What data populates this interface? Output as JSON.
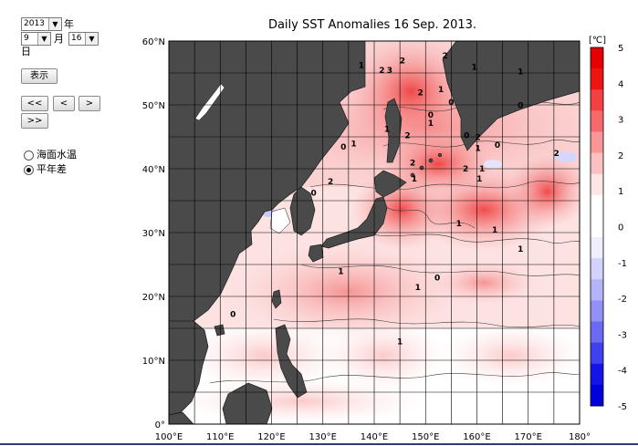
{
  "controls": {
    "year": {
      "value": "2013",
      "unit": "年"
    },
    "month": {
      "value": "9",
      "unit": "月"
    },
    "day": {
      "value": "16",
      "unit": "日"
    },
    "show_button": "表示",
    "nav_buttons": [
      "<<",
      "<",
      ">",
      ">>"
    ],
    "display_mode": {
      "options": [
        "海面水温",
        "平年差"
      ],
      "selected": "平年差"
    }
  },
  "map": {
    "title": "Daily SST Anomalies 16 Sep. 2013.",
    "lat_labels": [
      "60°N",
      "50°N",
      "40°N",
      "30°N",
      "20°N",
      "10°N",
      "0°"
    ],
    "lon_labels": [
      "100°E",
      "110°E",
      "120°E",
      "130°E",
      "140°E",
      "150°E",
      "160°E",
      "170°E",
      "180°"
    ],
    "lat_range": [
      0,
      60
    ],
    "lon_range": [
      100,
      180
    ],
    "grid": true,
    "land_color": "#4a4a4a",
    "contour_labels": [
      {
        "text": "2",
        "lon": 145.5,
        "lat": 56.5
      },
      {
        "text": "1",
        "lon": 137.5,
        "lat": 55.8
      },
      {
        "text": "2",
        "lon": 141.5,
        "lat": 55.0
      },
      {
        "text": "3",
        "lon": 143.0,
        "lat": 55.0
      },
      {
        "text": "2",
        "lon": 153.8,
        "lat": 57.3
      },
      {
        "text": "1",
        "lon": 159.5,
        "lat": 55.5
      },
      {
        "text": "1",
        "lon": 168.5,
        "lat": 54.8
      },
      {
        "text": "2",
        "lon": 149.0,
        "lat": 51.5
      },
      {
        "text": "1",
        "lon": 153.0,
        "lat": 52.0
      },
      {
        "text": "0",
        "lon": 155.0,
        "lat": 50.0
      },
      {
        "text": "0",
        "lon": 168.5,
        "lat": 49.5
      },
      {
        "text": "0",
        "lon": 151.0,
        "lat": 48.0
      },
      {
        "text": "1",
        "lon": 151.0,
        "lat": 46.7
      },
      {
        "text": "1",
        "lon": 142.5,
        "lat": 45.8
      },
      {
        "text": "0",
        "lon": 134.0,
        "lat": 43.0
      },
      {
        "text": "1",
        "lon": 136.0,
        "lat": 43.5
      },
      {
        "text": "2",
        "lon": 146.5,
        "lat": 44.8
      },
      {
        "text": "0",
        "lon": 158.0,
        "lat": 44.8
      },
      {
        "text": "2",
        "lon": 160.2,
        "lat": 44.5
      },
      {
        "text": "1",
        "lon": 160.2,
        "lat": 42.8
      },
      {
        "text": "0",
        "lon": 164.0,
        "lat": 43.3
      },
      {
        "text": "2",
        "lon": 147.5,
        "lat": 40.5
      },
      {
        "text": "2",
        "lon": 157.8,
        "lat": 39.6
      },
      {
        "text": "1",
        "lon": 161.0,
        "lat": 39.6
      },
      {
        "text": "2",
        "lon": 175.5,
        "lat": 42.0
      },
      {
        "text": "1",
        "lon": 147.8,
        "lat": 38.0
      },
      {
        "text": "1",
        "lon": 160.5,
        "lat": 38.0
      },
      {
        "text": "2",
        "lon": 131.5,
        "lat": 37.6
      },
      {
        "text": "0",
        "lon": 128.2,
        "lat": 35.8
      },
      {
        "text": "1",
        "lon": 156.5,
        "lat": 31.0
      },
      {
        "text": "1",
        "lon": 163.5,
        "lat": 30.0
      },
      {
        "text": "1",
        "lon": 168.5,
        "lat": 27.0
      },
      {
        "text": "1",
        "lon": 133.5,
        "lat": 23.5
      },
      {
        "text": "0",
        "lon": 152.3,
        "lat": 22.5
      },
      {
        "text": "1",
        "lon": 148.5,
        "lat": 21.0
      },
      {
        "text": "0",
        "lon": 112.5,
        "lat": 16.8
      },
      {
        "text": "1",
        "lon": 145.0,
        "lat": 12.5
      }
    ]
  },
  "colorbar": {
    "unit": "[℃]",
    "ticks": [
      "5",
      "4",
      "3",
      "2",
      "1",
      "0",
      "-1",
      "-2",
      "-3",
      "-4",
      "-5"
    ],
    "colors": [
      "#e60000",
      "#ee1414",
      "#f34040",
      "#f76a6a",
      "#fa9696",
      "#fdc0c0",
      "#fee6e6",
      "#ffffff",
      "#ffffff",
      "#eeeefe",
      "#d2d2fc",
      "#b4b4fa",
      "#9090f6",
      "#6a6af2",
      "#4040ee",
      "#1414e6",
      "#0000dd"
    ]
  }
}
